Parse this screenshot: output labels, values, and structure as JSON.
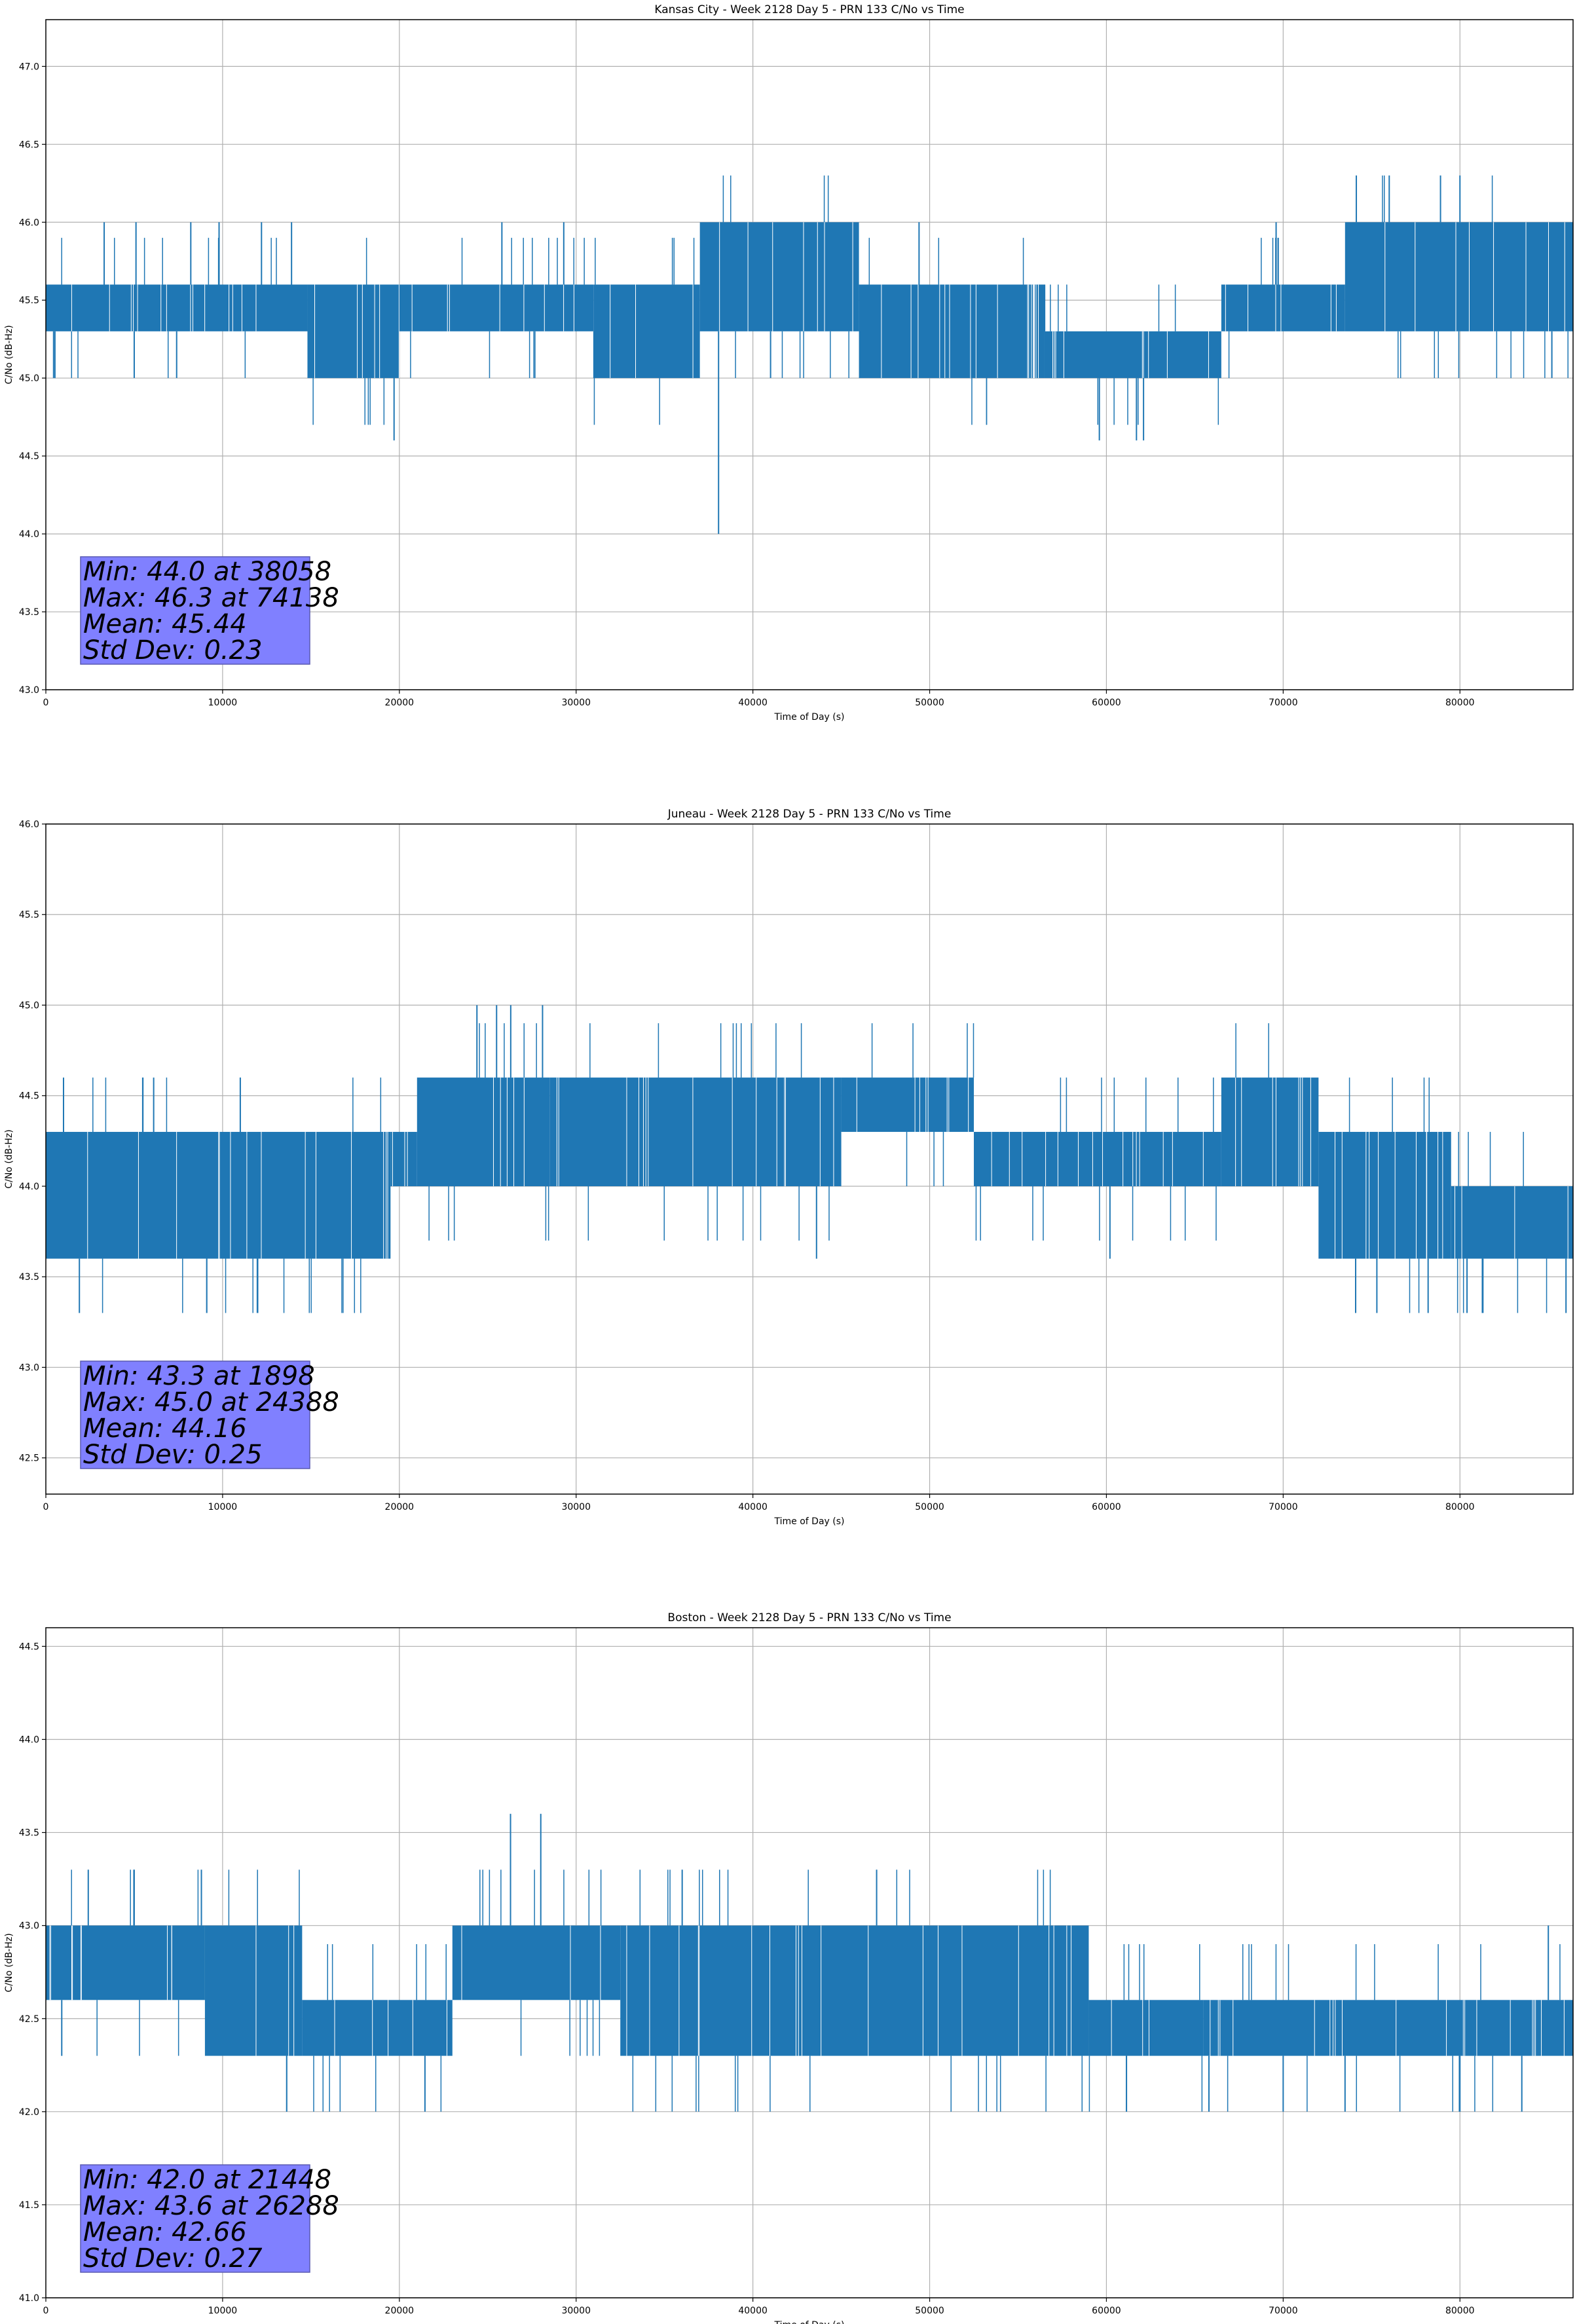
{
  "chart_data": [
    {
      "type": "line",
      "title": "Kansas City - Week 2128 Day 5 - PRN 133 C/No vs Time",
      "xlabel": "Time of Day (s)",
      "ylabel": "C/No (dB-Hz)",
      "xlim": [
        0,
        86400
      ],
      "ylim": [
        43.0,
        47.3
      ],
      "xticks": [
        0,
        10000,
        20000,
        30000,
        40000,
        50000,
        60000,
        70000,
        80000
      ],
      "yticks": [
        43.0,
        43.5,
        44.0,
        44.5,
        45.0,
        45.5,
        46.0,
        46.5,
        47.0
      ],
      "grid": true,
      "series": [
        {
          "color": "#1f77b4",
          "segments": [
            {
              "x0": 0,
              "x1": 14800,
              "lo": 45.3,
              "hi": 45.6
            },
            {
              "x0": 14800,
              "x1": 20000,
              "lo": 45.0,
              "hi": 45.6
            },
            {
              "x0": 20000,
              "x1": 31000,
              "lo": 45.3,
              "hi": 45.6
            },
            {
              "x0": 31000,
              "x1": 37000,
              "lo": 45.0,
              "hi": 45.6
            },
            {
              "x0": 37000,
              "x1": 46000,
              "lo": 45.3,
              "hi": 46.0
            },
            {
              "x0": 46000,
              "x1": 56500,
              "lo": 45.0,
              "hi": 45.6
            },
            {
              "x0": 56500,
              "x1": 66500,
              "lo": 45.0,
              "hi": 45.3
            },
            {
              "x0": 66500,
              "x1": 73500,
              "lo": 45.3,
              "hi": 45.6
            },
            {
              "x0": 73500,
              "x1": 86400,
              "lo": 45.3,
              "hi": 46.0
            }
          ],
          "spikes": [
            {
              "x": 3300,
              "y": 46.0
            },
            {
              "x": 5100,
              "y": 46.0
            },
            {
              "x": 8200,
              "y": 46.0
            },
            {
              "x": 9800,
              "y": 46.0
            },
            {
              "x": 12200,
              "y": 46.0
            },
            {
              "x": 13900,
              "y": 46.0
            },
            {
              "x": 500,
              "y": 45.0
            },
            {
              "x": 5000,
              "y": 45.0
            },
            {
              "x": 7400,
              "y": 45.0
            },
            {
              "x": 19700,
              "y": 44.6
            },
            {
              "x": 25800,
              "y": 46.0
            },
            {
              "x": 29300,
              "y": 46.0
            },
            {
              "x": 38058,
              "y": 44.0
            },
            {
              "x": 41000,
              "y": 45.0
            },
            {
              "x": 49400,
              "y": 46.0
            },
            {
              "x": 59600,
              "y": 44.6
            },
            {
              "x": 61700,
              "y": 44.6
            },
            {
              "x": 62100,
              "y": 44.6
            },
            {
              "x": 69600,
              "y": 46.0
            },
            {
              "x": 74138,
              "y": 46.3
            },
            {
              "x": 76000,
              "y": 46.3
            },
            {
              "x": 78900,
              "y": 46.3
            },
            {
              "x": 80000,
              "y": 46.3
            },
            {
              "x": 85200,
              "y": 45.0
            }
          ]
        }
      ],
      "stats_box": [
        "Min: 44.0 at 38058",
        "Max: 46.3 at 74138",
        "Mean: 45.44",
        "Std Dev: 0.23"
      ]
    },
    {
      "type": "line",
      "title": "Juneau - Week 2128 Day 5 - PRN 133 C/No vs Time",
      "xlabel": "Time of Day (s)",
      "ylabel": "C/No (dB-Hz)",
      "xlim": [
        0,
        86400
      ],
      "ylim": [
        42.3,
        46.0
      ],
      "xticks": [
        0,
        10000,
        20000,
        30000,
        40000,
        50000,
        60000,
        70000,
        80000
      ],
      "yticks": [
        42.5,
        43.0,
        43.5,
        44.0,
        44.5,
        45.0,
        45.5,
        46.0
      ],
      "grid": true,
      "series": [
        {
          "color": "#1f77b4",
          "segments": [
            {
              "x0": 0,
              "x1": 19500,
              "lo": 43.6,
              "hi": 44.3
            },
            {
              "x0": 19500,
              "x1": 21000,
              "lo": 44.0,
              "hi": 44.3
            },
            {
              "x0": 21000,
              "x1": 28500,
              "lo": 44.0,
              "hi": 44.6
            },
            {
              "x0": 28500,
              "x1": 45000,
              "lo": 44.0,
              "hi": 44.6
            },
            {
              "x0": 45000,
              "x1": 52500,
              "lo": 44.3,
              "hi": 44.6
            },
            {
              "x0": 52500,
              "x1": 66500,
              "lo": 44.0,
              "hi": 44.3
            },
            {
              "x0": 66500,
              "x1": 72000,
              "lo": 44.0,
              "hi": 44.6
            },
            {
              "x0": 72000,
              "x1": 79500,
              "lo": 43.6,
              "hi": 44.3
            },
            {
              "x0": 79500,
              "x1": 86400,
              "lo": 43.6,
              "hi": 44.0
            }
          ],
          "spikes": [
            {
              "x": 1898,
              "y": 43.3
            },
            {
              "x": 1000,
              "y": 44.6
            },
            {
              "x": 6100,
              "y": 44.6
            },
            {
              "x": 11000,
              "y": 44.6
            },
            {
              "x": 24388,
              "y": 45.0
            },
            {
              "x": 25500,
              "y": 45.0
            },
            {
              "x": 26300,
              "y": 45.0
            },
            {
              "x": 28100,
              "y": 45.0
            },
            {
              "x": 43600,
              "y": 43.6
            },
            {
              "x": 60200,
              "y": 43.6
            },
            {
              "x": 74100,
              "y": 43.3
            },
            {
              "x": 75300,
              "y": 43.3
            },
            {
              "x": 78200,
              "y": 43.3
            },
            {
              "x": 80400,
              "y": 43.3
            },
            {
              "x": 81300,
              "y": 43.3
            },
            {
              "x": 86000,
              "y": 43.3
            }
          ]
        }
      ],
      "stats_box": [
        "Min: 43.3 at 1898",
        "Max: 45.0 at 24388",
        "Mean: 44.16",
        "Std Dev: 0.25"
      ]
    },
    {
      "type": "line",
      "title": "Boston - Week 2128 Day 5 - PRN 133 C/No vs Time",
      "xlabel": "Time of Day (s)",
      "ylabel": "C/No (dB-Hz)",
      "xlim": [
        0,
        86400
      ],
      "ylim": [
        41.0,
        44.6
      ],
      "xticks": [
        0,
        10000,
        20000,
        30000,
        40000,
        50000,
        60000,
        70000,
        80000
      ],
      "yticks": [
        41.0,
        41.5,
        42.0,
        42.5,
        43.0,
        43.5,
        44.0,
        44.5
      ],
      "grid": true,
      "series": [
        {
          "color": "#1f77b4",
          "segments": [
            {
              "x0": 0,
              "x1": 9000,
              "lo": 42.6,
              "hi": 43.0
            },
            {
              "x0": 9000,
              "x1": 14500,
              "lo": 42.3,
              "hi": 43.0
            },
            {
              "x0": 14500,
              "x1": 23000,
              "lo": 42.3,
              "hi": 42.6
            },
            {
              "x0": 23000,
              "x1": 32500,
              "lo": 42.6,
              "hi": 43.0
            },
            {
              "x0": 32500,
              "x1": 59000,
              "lo": 42.3,
              "hi": 43.0
            },
            {
              "x0": 59000,
              "x1": 65500,
              "lo": 42.3,
              "hi": 42.6
            },
            {
              "x0": 65500,
              "x1": 86400,
              "lo": 42.3,
              "hi": 42.6
            }
          ],
          "spikes": [
            {
              "x": 2400,
              "y": 43.3
            },
            {
              "x": 5000,
              "y": 43.3
            },
            {
              "x": 8800,
              "y": 43.3
            },
            {
              "x": 900,
              "y": 42.3
            },
            {
              "x": 21448,
              "y": 42.0
            },
            {
              "x": 26288,
              "y": 43.6
            },
            {
              "x": 28000,
              "y": 43.6
            },
            {
              "x": 36000,
              "y": 43.3
            },
            {
              "x": 47000,
              "y": 43.3
            },
            {
              "x": 65800,
              "y": 42.0
            },
            {
              "x": 70000,
              "y": 42.0
            },
            {
              "x": 73500,
              "y": 42.0
            },
            {
              "x": 80000,
              "y": 42.0
            },
            {
              "x": 83500,
              "y": 42.0
            },
            {
              "x": 85000,
              "y": 43.0
            }
          ]
        }
      ],
      "stats_box": [
        "Min: 42.0 at 21448",
        "Max: 43.6 at 26288",
        "Mean: 42.66",
        "Std Dev: 0.27"
      ]
    }
  ]
}
